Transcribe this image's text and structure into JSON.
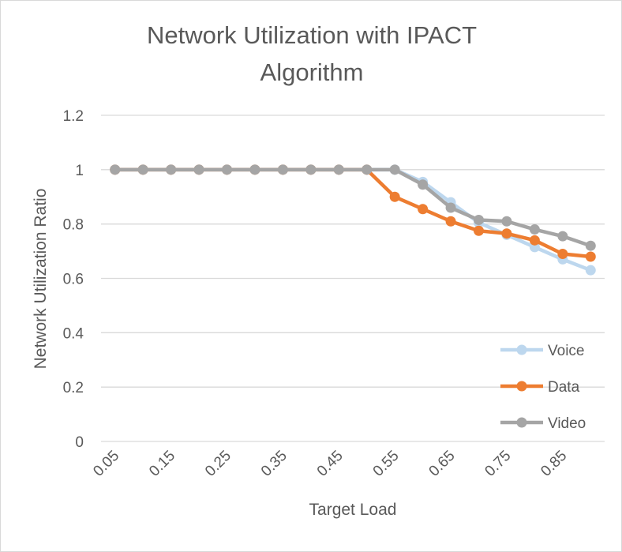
{
  "chart_data": {
    "type": "line",
    "title": [
      "Network Utilization with IPACT",
      "Algorithm"
    ],
    "xlabel": "Target Load",
    "ylabel": "Network Utilization Ratio",
    "x": [
      0.05,
      0.1,
      0.15,
      0.2,
      0.25,
      0.3,
      0.35,
      0.4,
      0.45,
      0.5,
      0.55,
      0.6,
      0.65,
      0.7,
      0.75,
      0.8,
      0.85,
      0.9
    ],
    "x_tick_labels": [
      "0.05",
      "0.15",
      "0.25",
      "0.35",
      "0.45",
      "0.55",
      "0.65",
      "0.75",
      "0.85"
    ],
    "ylim": [
      0,
      1.2
    ],
    "y_ticks": [
      0,
      0.2,
      0.4,
      0.6,
      0.8,
      1,
      1.2
    ],
    "y_tick_labels": [
      "0",
      "0.2",
      "0.4",
      "0.6",
      "0.8",
      "1",
      "1.2"
    ],
    "grid": true,
    "legend_position": "bottom-right",
    "series": [
      {
        "name": "Voice",
        "color": "#bdd7ee",
        "values": [
          1,
          1,
          1,
          1,
          1,
          1,
          1,
          1,
          1,
          1,
          1,
          0.955,
          0.88,
          0.805,
          0.76,
          0.715,
          0.67,
          0.63
        ]
      },
      {
        "name": "Data",
        "color": "#ed7d31",
        "values": [
          1,
          1,
          1,
          1,
          1,
          1,
          1,
          1,
          1,
          1,
          0.9,
          0.855,
          0.81,
          0.775,
          0.765,
          0.74,
          0.69,
          0.68
        ]
      },
      {
        "name": "Video",
        "color": "#a5a5a5",
        "values": [
          1,
          1,
          1,
          1,
          1,
          1,
          1,
          1,
          1,
          1,
          1,
          0.945,
          0.86,
          0.815,
          0.81,
          0.78,
          0.755,
          0.72
        ]
      }
    ]
  }
}
